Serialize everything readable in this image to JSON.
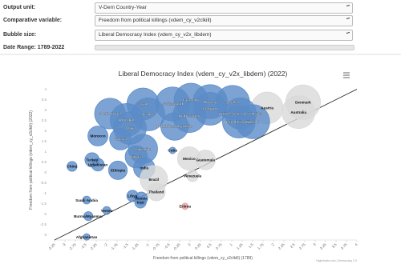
{
  "controls": {
    "output_unit": {
      "label": "Output unit:",
      "value": "V-Dem Country-Year"
    },
    "comparative_variable": {
      "label": "Comparative variable:",
      "value": "Freedom from political killings (vdem_cy_v2clkill)"
    },
    "bubble_size": {
      "label": "Bubble size:",
      "value": "Liberal Democracy Index (vdem_cy_v2x_libdem)"
    },
    "date_range": {
      "label": "Date Range: 1789-2022"
    }
  },
  "chart_data": {
    "type": "bubble",
    "title": "Liberal Democracy Index (vdem_cy_v2x_libdem) (2022)",
    "x_label": "Freedom from political killings (vdem_cy_v2clkill) (1789)",
    "y_label": "Freedom from political killings (vdem_cy_v2clkill) (2022)",
    "credits": "Highcharts.com | Democracy 2.0",
    "xlim": [
      -3.25,
      4
    ],
    "ylim": [
      -3.25,
      4.25
    ],
    "xticks": [
      -3.25,
      -3,
      -2.75,
      -2.5,
      -2.25,
      -2,
      -1.75,
      -1.5,
      -1.25,
      -1,
      -0.75,
      -0.5,
      -0.25,
      0,
      0.25,
      0.5,
      0.75,
      1,
      1.25,
      1.5,
      1.75,
      2,
      2.25,
      2.5,
      2.75,
      3,
      3.25,
      3.5,
      3.75,
      4
    ],
    "yticks": [
      -3,
      -2.5,
      -2,
      -1.5,
      -1,
      -0.5,
      0,
      0.5,
      1,
      1.5,
      2,
      2.5,
      3,
      3.5,
      4
    ],
    "points": [
      {
        "name": "Denmark",
        "x": 2.71,
        "y": 3.37,
        "size": 0.88,
        "color": "#d9d9d9"
      },
      {
        "name": "Australia",
        "x": 2.6,
        "y": 2.9,
        "size": 0.78,
        "color": "#d9d9d9"
      },
      {
        "name": "Austria",
        "x": 1.85,
        "y": 3.1,
        "size": 0.72,
        "color": "#d9d9d9"
      },
      {
        "name": "Sweden",
        "x": 1.02,
        "y": 3.37,
        "size": 0.83,
        "color": "#5b8cc8"
      },
      {
        "name": "Germany",
        "x": 0.02,
        "y": 3.48,
        "size": 0.82,
        "color": "#5b8cc8"
      },
      {
        "name": "Norway",
        "x": 0.48,
        "y": 3.4,
        "size": 0.85,
        "color": "#5b8cc8"
      },
      {
        "name": "Belgium",
        "x": 0.48,
        "y": 3.06,
        "size": 0.78,
        "color": "#5b8cc8"
      },
      {
        "name": "United States of America",
        "x": 1.21,
        "y": 2.83,
        "size": 0.71,
        "color": "#5b8cc8"
      },
      {
        "name": "United Kingdom",
        "x": 1.17,
        "y": 2.44,
        "size": 0.77,
        "color": "#5b8cc8"
      },
      {
        "name": "Finland",
        "x": 1.5,
        "y": 2.44,
        "size": 0.84,
        "color": "#5b8cc8"
      },
      {
        "name": "Japan",
        "x": -1.13,
        "y": 3.29,
        "size": 0.73,
        "color": "#5b8cc8"
      },
      {
        "name": "France",
        "x": -1.0,
        "y": 2.79,
        "size": 0.78,
        "color": "#5b8cc8"
      },
      {
        "name": "Switzerland",
        "x": -0.42,
        "y": 3.29,
        "size": 0.84,
        "color": "#5b8cc8"
      },
      {
        "name": "Netherlands",
        "x": -0.02,
        "y": 2.71,
        "size": 0.79,
        "color": "#5b8cc8"
      },
      {
        "name": "South Korea",
        "x": -1.92,
        "y": 2.83,
        "size": 0.67,
        "color": "#5b8cc8"
      },
      {
        "name": "Portugal",
        "x": -1.52,
        "y": 2.52,
        "size": 0.78,
        "color": "#5b8cc8"
      },
      {
        "name": "Chile",
        "x": -1.44,
        "y": 2.13,
        "size": 0.76,
        "color": "#5b8cc8"
      },
      {
        "name": "Dominican Republic",
        "x": -0.37,
        "y": 2.21,
        "size": 0.53,
        "color": "#5b8cc8"
      },
      {
        "name": "Morocco",
        "x": -2.21,
        "y": 1.75,
        "size": 0.25,
        "color": "#5b8cc8"
      },
      {
        "name": "Tunisia",
        "x": -1.67,
        "y": 1.6,
        "size": 0.3,
        "color": "#5b8cc8"
      },
      {
        "name": "Argentina",
        "x": -1.13,
        "y": 1.13,
        "size": 0.6,
        "color": "#5b8cc8"
      },
      {
        "name": "Nigeria",
        "x": -1.29,
        "y": 0.75,
        "size": 0.32,
        "color": "#5b8cc8"
      },
      {
        "name": "Cuba",
        "x": -0.42,
        "y": 1.06,
        "size": 0.01,
        "color": "#5b8cc8"
      },
      {
        "name": "Mexico",
        "x": -0.02,
        "y": 0.67,
        "size": 0.36,
        "color": "#d9d9d9"
      },
      {
        "name": "Guatemala",
        "x": 0.37,
        "y": 0.6,
        "size": 0.24,
        "color": "#d9d9d9"
      },
      {
        "name": "Turkey",
        "x": -2.35,
        "y": 0.6,
        "size": 0.11,
        "color": "#5b8cc8"
      },
      {
        "name": "Uzbekistan",
        "x": -2.21,
        "y": 0.37,
        "size": 0.08,
        "color": "#5b8cc8"
      },
      {
        "name": "India",
        "x": -1.1,
        "y": 0.21,
        "size": 0.29,
        "color": "#5b8cc8"
      },
      {
        "name": "China",
        "x": -2.83,
        "y": 0.29,
        "size": 0.04,
        "color": "#5b8cc8"
      },
      {
        "name": "Ethiopia",
        "x": -1.73,
        "y": 0.1,
        "size": 0.21,
        "color": "#5b8cc8"
      },
      {
        "name": "Brazil",
        "x": -0.87,
        "y": -0.33,
        "size": 0.52,
        "color": "#d9d9d9"
      },
      {
        "name": "Venezuela",
        "x": 0.06,
        "y": -0.17,
        "size": 0.06,
        "color": "#d9d9d9"
      },
      {
        "name": "Thailand",
        "x": -0.81,
        "y": -0.94,
        "size": 0.19,
        "color": "#d9d9d9"
      },
      {
        "name": "Libya",
        "x": -1.38,
        "y": -1.13,
        "size": 0.06,
        "color": "#5b8cc8"
      },
      {
        "name": "Russia",
        "x": -1.17,
        "y": -1.25,
        "size": 0.08,
        "color": "#5b8cc8"
      },
      {
        "name": "Iran",
        "x": -1.19,
        "y": -1.44,
        "size": 0.06,
        "color": "#5b8cc8"
      },
      {
        "name": "Saudi Arabia",
        "x": -2.48,
        "y": -1.33,
        "size": 0.02,
        "color": "#5b8cc8"
      },
      {
        "name": "Eritrea",
        "x": -0.12,
        "y": -1.63,
        "size": 0.01,
        "color": "#e8a0a0"
      },
      {
        "name": "Yemen",
        "x": -2.0,
        "y": -1.83,
        "size": 0.02,
        "color": "#5b8cc8"
      },
      {
        "name": "Burma/Myanmar",
        "x": -2.44,
        "y": -2.1,
        "size": 0.03,
        "color": "#5b8cc8"
      },
      {
        "name": "Afghanistan",
        "x": -2.48,
        "y": -3.1,
        "size": 0.01,
        "color": "#5b8cc8"
      }
    ]
  }
}
